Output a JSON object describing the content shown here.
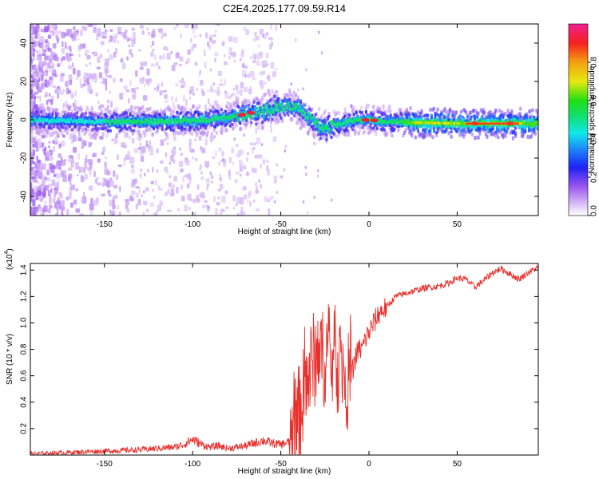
{
  "title": "C2E4.2025.177.09.59.R14",
  "chart_data": [
    {
      "type": "heatmap",
      "xlabel": "Height of straight line (km)",
      "ylabel": "Frequency (Hz)",
      "xlim": [
        -192,
        96
      ],
      "ylim": [
        -50,
        50
      ],
      "x_ticks": [
        -150,
        -100,
        -50,
        0,
        50
      ],
      "y_ticks": [
        -40,
        -20,
        0,
        20,
        40
      ],
      "colorbar": {
        "label": "Normalized spectral amplitude",
        "range": [
          0,
          1
        ],
        "ticks": [
          0.0,
          0.2,
          0.4,
          0.6,
          0.8
        ],
        "tick_labels": [
          "0.0",
          "0.2",
          "0.4",
          "0.6",
          "0.8"
        ]
      },
      "ridge": {
        "description_points_x": [
          -190,
          -175,
          -150,
          -125,
          -100,
          -90,
          -80,
          -70,
          -60,
          -55,
          -50,
          -45,
          -40,
          -35,
          -30,
          -25,
          -20,
          -10,
          0,
          10,
          25,
          50,
          75,
          96
        ],
        "description_points_y": [
          0,
          -0.5,
          -1,
          -1,
          -0.5,
          0,
          1,
          3,
          5,
          6,
          7,
          8,
          6,
          2,
          -2,
          -5,
          -3,
          -0.5,
          0,
          -1,
          -1.5,
          -2,
          -2,
          -2
        ],
        "peak_amplitude_x": [
          -72,
          -67,
          -2,
          3,
          60,
          80
        ]
      }
    },
    {
      "type": "line",
      "xlabel": "Height of straight line (km)",
      "ylabel": "SNR (10 * v/v)",
      "y_scale_label": "(x10^4)",
      "xlim": [
        -192,
        96
      ],
      "ylim": [
        0,
        1.45
      ],
      "x_ticks": [
        -150,
        -100,
        -50,
        0,
        50
      ],
      "y_ticks": [
        0.2,
        0.4,
        0.6,
        0.8,
        1.0,
        1.2,
        1.4
      ],
      "y_tick_labels": [
        "0.2",
        "0.4",
        "0.6",
        "0.8",
        "1.0",
        "1.2",
        "1.4"
      ],
      "color": "#e8302c",
      "series": [
        {
          "x": [
            -192,
            -180,
            -170,
            -160,
            -150,
            -140,
            -130,
            -120,
            -110,
            -105,
            -100,
            -95,
            -90,
            -85,
            -80,
            -75,
            -70,
            -65,
            -60,
            -55,
            -50,
            -45,
            -42,
            -40,
            -38,
            -36,
            -34,
            -32,
            -30,
            -28,
            -26,
            -24,
            -22,
            -20,
            -18,
            -16,
            -14,
            -12,
            -10,
            -8,
            -6,
            -4,
            -2,
            0,
            2,
            4,
            6,
            8,
            10,
            12,
            15,
            20,
            25,
            30,
            35,
            40,
            45,
            50,
            55,
            60,
            65,
            70,
            75,
            80,
            85,
            90,
            96
          ],
          "y": [
            0.01,
            0.015,
            0.02,
            0.025,
            0.03,
            0.035,
            0.04,
            0.05,
            0.06,
            0.08,
            0.12,
            0.08,
            0.06,
            0.07,
            0.05,
            0.06,
            0.07,
            0.09,
            0.11,
            0.09,
            0.08,
            0.1,
            0.2,
            0.3,
            0.4,
            0.5,
            0.6,
            0.7,
            0.75,
            0.8,
            0.72,
            0.78,
            0.7,
            0.72,
            0.68,
            0.7,
            0.65,
            0.55,
            0.6,
            0.72,
            0.8,
            0.8,
            0.88,
            0.93,
            0.98,
            1.03,
            1.08,
            1.1,
            1.12,
            1.15,
            1.2,
            1.22,
            1.24,
            1.26,
            1.27,
            1.28,
            1.3,
            1.34,
            1.33,
            1.27,
            1.32,
            1.38,
            1.41,
            1.37,
            1.33,
            1.38,
            1.42
          ]
        }
      ]
    }
  ]
}
